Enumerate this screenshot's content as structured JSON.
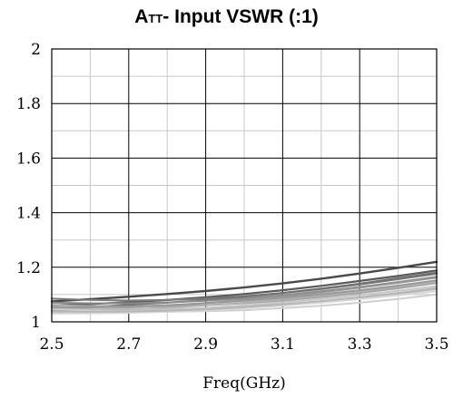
{
  "chart_data": {
    "type": "line",
    "title": "A",
    "title_subscript": "TT",
    "title_rest": "- Input VSWR (:1)",
    "xlabel": "Freq(GHz)",
    "ylabel": "",
    "xlim": [
      2.5,
      3.5
    ],
    "ylim": [
      1,
      2
    ],
    "x_major_ticks": [
      "2.5",
      "2.7",
      "2.9",
      "3.1",
      "3.3",
      "3.5"
    ],
    "y_major_ticks": [
      "1",
      "1.2",
      "1.4",
      "1.6",
      "1.8",
      "2"
    ],
    "grid": true,
    "legend": "none",
    "x": [
      2.5,
      2.6,
      2.7,
      2.8,
      2.9,
      3.0,
      3.1,
      3.2,
      3.3,
      3.4,
      3.5
    ],
    "series": [
      {
        "color": "#4a4a4a",
        "width": 2.4,
        "values": [
          1.075,
          1.083,
          1.092,
          1.102,
          1.113,
          1.126,
          1.141,
          1.158,
          1.177,
          1.198,
          1.22
        ]
      },
      {
        "color": "#5a5a5a",
        "width": 2.2,
        "values": [
          1.06,
          1.065,
          1.072,
          1.08,
          1.09,
          1.102,
          1.116,
          1.132,
          1.15,
          1.168,
          1.188
        ]
      },
      {
        "color": "#7a7a7a",
        "width": 2.0,
        "values": [
          1.085,
          1.08,
          1.078,
          1.08,
          1.085,
          1.094,
          1.106,
          1.12,
          1.137,
          1.156,
          1.176
        ]
      },
      {
        "color": "#707070",
        "width": 2.0,
        "values": [
          1.05,
          1.055,
          1.062,
          1.07,
          1.08,
          1.092,
          1.106,
          1.122,
          1.14,
          1.16,
          1.18
        ]
      },
      {
        "color": "#8a8a8a",
        "width": 2.0,
        "values": [
          1.07,
          1.068,
          1.068,
          1.071,
          1.077,
          1.086,
          1.098,
          1.112,
          1.128,
          1.146,
          1.165
        ]
      },
      {
        "color": "#969696",
        "width": 2.0,
        "values": [
          1.045,
          1.048,
          1.053,
          1.06,
          1.069,
          1.08,
          1.093,
          1.108,
          1.125,
          1.143,
          1.162
        ]
      },
      {
        "color": "#a2a2a2",
        "width": 2.0,
        "values": [
          1.062,
          1.058,
          1.056,
          1.057,
          1.061,
          1.068,
          1.078,
          1.091,
          1.106,
          1.123,
          1.142
        ]
      },
      {
        "color": "#b0b0b0",
        "width": 2.0,
        "values": [
          1.04,
          1.042,
          1.046,
          1.052,
          1.06,
          1.07,
          1.082,
          1.096,
          1.111,
          1.128,
          1.146
        ]
      },
      {
        "color": "#bcbcbc",
        "width": 2.0,
        "values": [
          1.055,
          1.05,
          1.047,
          1.047,
          1.05,
          1.056,
          1.064,
          1.075,
          1.088,
          1.103,
          1.12
        ]
      },
      {
        "color": "#c6c6c6",
        "width": 2.0,
        "values": [
          1.035,
          1.036,
          1.039,
          1.044,
          1.051,
          1.06,
          1.071,
          1.084,
          1.098,
          1.114,
          1.131
        ]
      },
      {
        "color": "#cfcfcf",
        "width": 2.0,
        "values": [
          1.048,
          1.042,
          1.038,
          1.037,
          1.039,
          1.043,
          1.05,
          1.059,
          1.07,
          1.084,
          1.1
        ]
      },
      {
        "color": "#d8d8d8",
        "width": 2.0,
        "values": [
          1.03,
          1.031,
          1.033,
          1.037,
          1.043,
          1.05,
          1.059,
          1.07,
          1.083,
          1.097,
          1.112
        ]
      },
      {
        "color": "#999999",
        "width": 2.0,
        "values": [
          1.052,
          1.053,
          1.056,
          1.061,
          1.068,
          1.077,
          1.088,
          1.101,
          1.116,
          1.133,
          1.152
        ]
      },
      {
        "color": "#b6b6b6",
        "width": 2.0,
        "values": [
          1.038,
          1.037,
          1.038,
          1.041,
          1.046,
          1.054,
          1.064,
          1.076,
          1.09,
          1.106,
          1.124
        ]
      }
    ]
  }
}
